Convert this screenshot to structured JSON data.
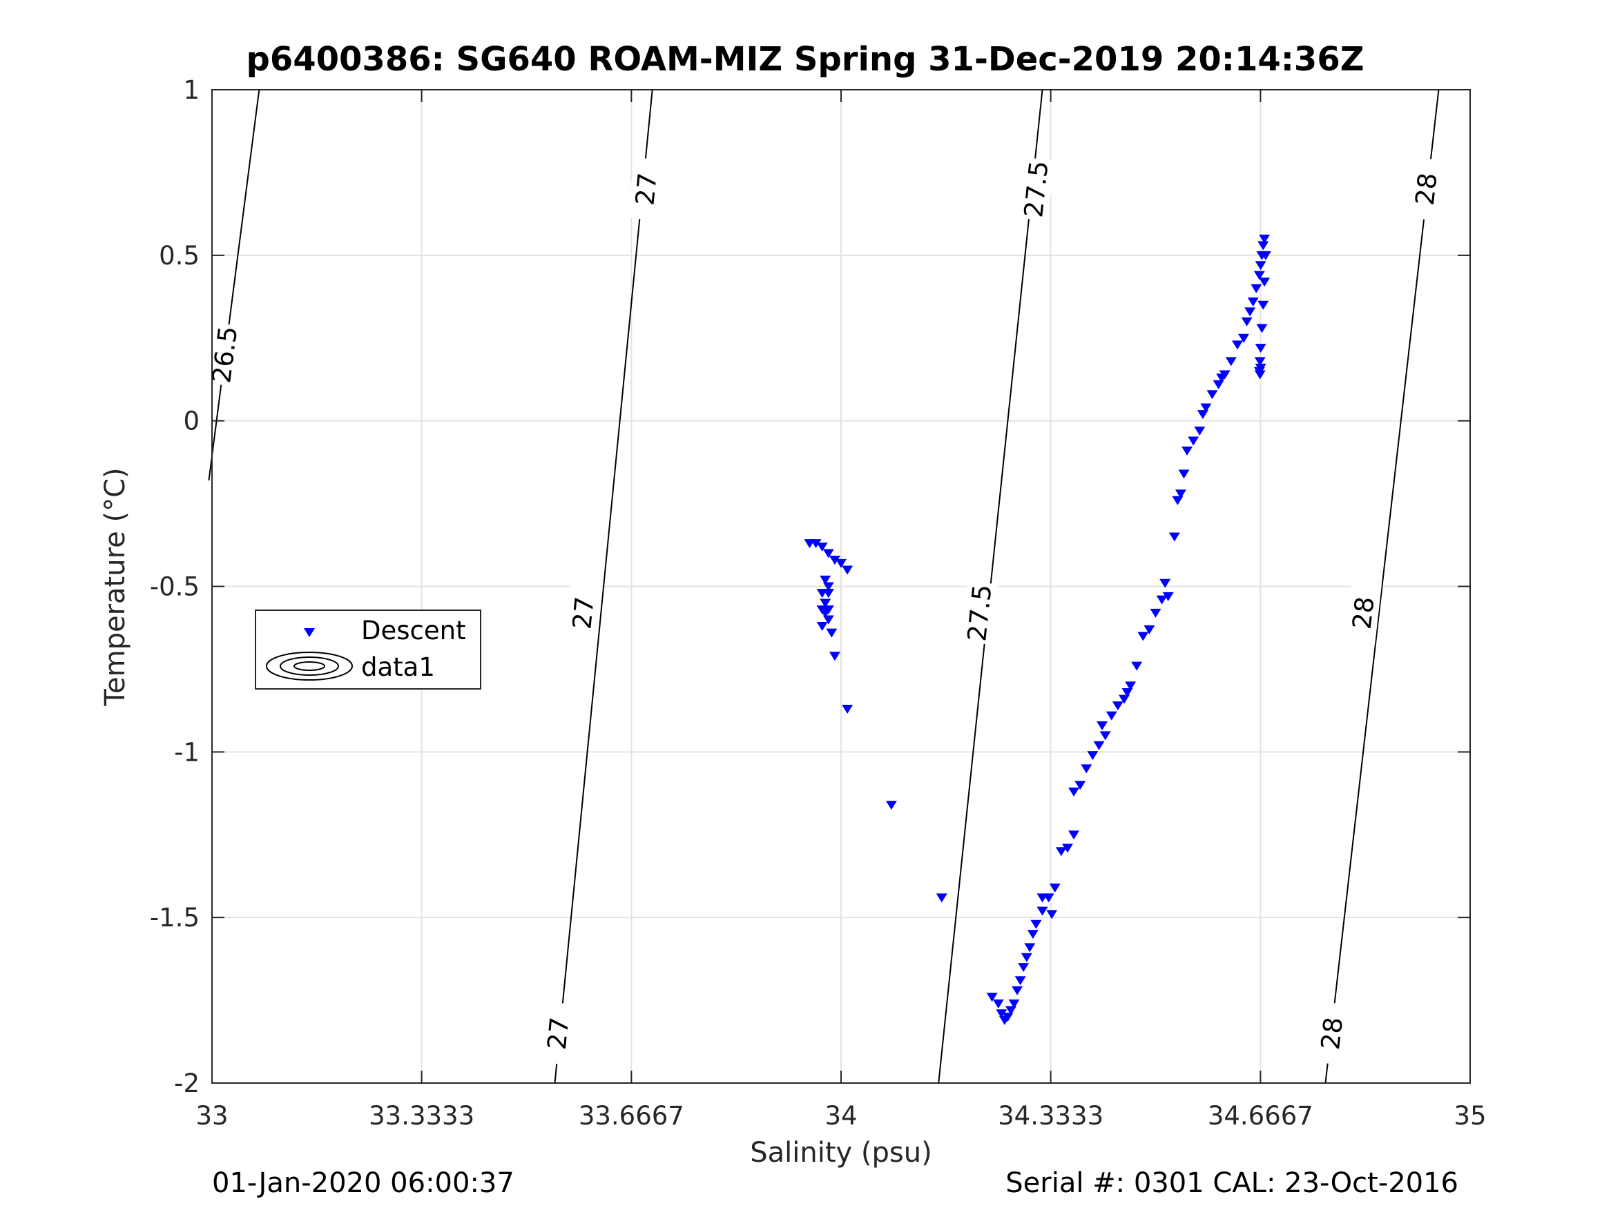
{
  "chart_data": {
    "type": "scatter",
    "title": "p6400386: SG640 ROAM-MIZ Spring 31-Dec-2019 20:14:36Z",
    "xlabel": "Salinity (psu)",
    "ylabel": "Temperature (°C)",
    "xlim": [
      33,
      35
    ],
    "ylim": [
      -2,
      1
    ],
    "xticks": [
      33,
      33.3333,
      33.6667,
      34,
      34.3333,
      34.6667,
      35
    ],
    "xtick_labels": [
      "33",
      "33.3333",
      "33.6667",
      "34",
      "34.3333",
      "34.6667",
      "35"
    ],
    "yticks": [
      -2,
      -1.5,
      -1,
      -0.5,
      0,
      0.5,
      1
    ],
    "ytick_labels": [
      "-2",
      "-1.5",
      "-1",
      "-0.5",
      "0",
      "0.5",
      "1"
    ],
    "grid": true,
    "legend": {
      "placement": "left",
      "entries": [
        "Descent",
        "data1"
      ]
    },
    "footer_left": "01-Jan-2020 06:00:37",
    "footer_right": "Serial #: 0301  CAL: 23-Oct-2016",
    "series": [
      {
        "name": "Descent",
        "marker": "triangle-down",
        "color": "#0000ff",
        "x": [
          33.95,
          33.96,
          33.97,
          33.98,
          33.975,
          33.99,
          34.0,
          34.01,
          33.98,
          33.97,
          33.975,
          33.98,
          33.97,
          33.975,
          33.98,
          33.97,
          33.98,
          33.985,
          33.98,
          33.99,
          34.01,
          34.08,
          34.16,
          34.24,
          34.25,
          34.255,
          34.26,
          34.265,
          34.27,
          34.275,
          34.28,
          34.285,
          34.29,
          34.295,
          34.3,
          34.305,
          34.31,
          34.32,
          34.33,
          34.34,
          34.335,
          34.32,
          34.35,
          34.36,
          34.37,
          34.38,
          34.37,
          34.39,
          34.4,
          34.41,
          34.42,
          34.415,
          34.43,
          34.44,
          34.45,
          34.455,
          34.46,
          34.47,
          34.48,
          34.49,
          34.5,
          34.51,
          34.52,
          34.515,
          34.53,
          34.535,
          34.54,
          34.545,
          34.55,
          34.56,
          34.57,
          34.575,
          34.58,
          34.59,
          34.6,
          34.605,
          34.61,
          34.62,
          34.63,
          34.64,
          34.645,
          34.65,
          34.655,
          34.66,
          34.665,
          34.667,
          34.669,
          34.671,
          34.673,
          34.675,
          34.673,
          34.671,
          34.669,
          34.667,
          34.666,
          34.665,
          34.666,
          34.667
        ],
        "y": [
          -0.37,
          -0.37,
          -0.38,
          -0.4,
          -0.48,
          -0.42,
          -0.43,
          -0.45,
          -0.5,
          -0.52,
          -0.55,
          -0.52,
          -0.57,
          -0.58,
          -0.6,
          -0.62,
          -0.57,
          -0.64,
          -0.52,
          -0.71,
          -0.87,
          -1.16,
          -1.44,
          -1.74,
          -1.76,
          -1.79,
          -1.81,
          -1.8,
          -1.78,
          -1.76,
          -1.72,
          -1.69,
          -1.65,
          -1.62,
          -1.59,
          -1.55,
          -1.52,
          -1.48,
          -1.44,
          -1.41,
          -1.49,
          -1.44,
          -1.3,
          -1.29,
          -1.25,
          -1.1,
          -1.12,
          -1.05,
          -1.01,
          -0.98,
          -0.95,
          -0.92,
          -0.89,
          -0.86,
          -0.84,
          -0.82,
          -0.8,
          -0.74,
          -0.65,
          -0.63,
          -0.58,
          -0.54,
          -0.53,
          -0.49,
          -0.35,
          -0.24,
          -0.22,
          -0.16,
          -0.09,
          -0.06,
          -0.03,
          0.02,
          0.04,
          0.08,
          0.11,
          0.13,
          0.14,
          0.18,
          0.23,
          0.25,
          0.3,
          0.33,
          0.36,
          0.4,
          0.44,
          0.47,
          0.5,
          0.53,
          0.55,
          0.5,
          0.42,
          0.35,
          0.28,
          0.22,
          0.18,
          0.15,
          0.14,
          0.16
        ]
      },
      {
        "name": "data1",
        "type": "contour",
        "levels": [
          26.5,
          27,
          27.5,
          28
        ],
        "lines": [
          {
            "level": 26.5,
            "x": [
              32.995,
              33.075
            ],
            "y": [
              -0.18,
              1.0
            ]
          },
          {
            "level": 27,
            "x": [
              33.545,
              33.7
            ],
            "y": [
              -2.0,
              1.0
            ]
          },
          {
            "level": 27.5,
            "x": [
              34.155,
              34.32
            ],
            "y": [
              -2.0,
              1.0
            ]
          },
          {
            "level": 28,
            "x": [
              34.77,
              34.95
            ],
            "y": [
              -2.0,
              1.0
            ]
          }
        ],
        "labels": [
          {
            "text": "26.5",
            "x": 33.02,
            "y": 0.2
          },
          {
            "text": "27",
            "x": 33.69,
            "y": 0.7
          },
          {
            "text": "27",
            "x": 33.59,
            "y": -0.58
          },
          {
            "text": "27",
            "x": 33.55,
            "y": -1.85
          },
          {
            "text": "27.5",
            "x": 34.31,
            "y": 0.7
          },
          {
            "text": "27.5",
            "x": 34.22,
            "y": -0.58
          },
          {
            "text": "28",
            "x": 34.93,
            "y": 0.7
          },
          {
            "text": "28",
            "x": 34.83,
            "y": -0.58
          },
          {
            "text": "28",
            "x": 34.78,
            "y": -1.85
          }
        ]
      }
    ]
  }
}
